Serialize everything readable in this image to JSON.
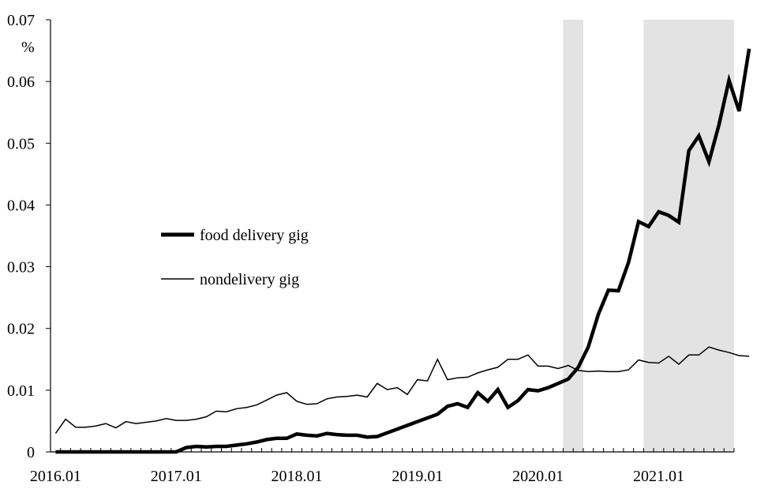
{
  "chart_data": {
    "type": "line",
    "unit_label": "%",
    "x_tick_labels": [
      "2016.01",
      "2017.01",
      "2018.01",
      "2019.01",
      "2020.01",
      "2021.01"
    ],
    "y_tick_labels": [
      "0",
      "0.01",
      "0.02",
      "0.03",
      "0.04",
      "0.05",
      "0.06",
      "0.07"
    ],
    "ylim": [
      0,
      0.07
    ],
    "x_start": "2016-01",
    "x_end": "2021-08",
    "grid": false,
    "legend_position": "center-left",
    "shaded_periods": [
      {
        "start": "2020-04",
        "end": "2020-05"
      },
      {
        "start": "2020-12",
        "end": "2021-02"
      },
      {
        "start": "2021-03",
        "end": "2021-08"
      }
    ],
    "series": [
      {
        "name": "food delivery gig",
        "style": "thick",
        "color": "#000000",
        "values": [
          0,
          0,
          0,
          0,
          0,
          0,
          0,
          0,
          0,
          0,
          0,
          0,
          0.0,
          0.0007,
          0.0009,
          0.0008,
          0.0009,
          0.0009,
          0.0011,
          0.0013,
          0.0016,
          0.002,
          0.0022,
          0.0022,
          0.0029,
          0.0027,
          0.0026,
          0.003,
          0.0028,
          0.0027,
          0.0027,
          0.0024,
          0.0025,
          0.0031,
          0.0037,
          0.0043,
          0.0049,
          0.0055,
          0.0061,
          0.0074,
          0.0078,
          0.0072,
          0.0096,
          0.0082,
          0.0101,
          0.0072,
          0.0083,
          0.0101,
          0.0099,
          0.0104,
          0.0111,
          0.0118,
          0.0137,
          0.017,
          0.0223,
          0.0262,
          0.0261,
          0.0307,
          0.0373,
          0.0365,
          0.0389,
          0.0383,
          0.0372,
          0.0488,
          0.0512,
          0.047,
          0.053,
          0.0602,
          0.0552,
          0.0653
        ]
      },
      {
        "name": "nondelivery gig",
        "style": "thin",
        "color": "#000000",
        "values": [
          0.003,
          0.0053,
          0.004,
          0.004,
          0.0042,
          0.0046,
          0.0039,
          0.0049,
          0.0046,
          0.0048,
          0.005,
          0.0054,
          0.0051,
          0.0051,
          0.0053,
          0.0057,
          0.0066,
          0.0065,
          0.007,
          0.0072,
          0.0076,
          0.0084,
          0.0092,
          0.0096,
          0.0082,
          0.0077,
          0.0078,
          0.0086,
          0.0089,
          0.009,
          0.0092,
          0.0089,
          0.0111,
          0.0101,
          0.0104,
          0.0093,
          0.0117,
          0.0115,
          0.015,
          0.0117,
          0.012,
          0.0121,
          0.0128,
          0.0133,
          0.0137,
          0.015,
          0.015,
          0.0157,
          0.0139,
          0.0139,
          0.0135,
          0.014,
          0.0132,
          0.013,
          0.0131,
          0.013,
          0.013,
          0.0133,
          0.0149,
          0.0145,
          0.0144,
          0.0155,
          0.0142,
          0.0157,
          0.0157,
          0.017,
          0.0165,
          0.0161,
          0.0156,
          0.0155
        ]
      }
    ]
  }
}
